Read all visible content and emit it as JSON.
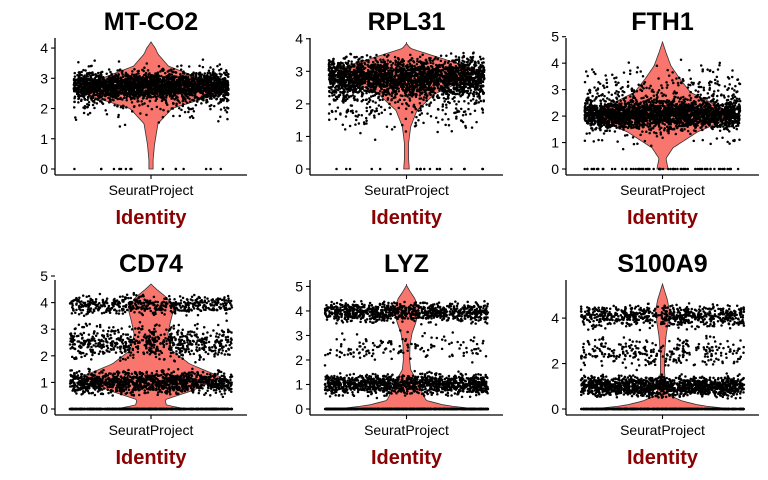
{
  "colors": {
    "violin_fill": "#f8766d",
    "point": "#000000",
    "axis_title": "#8b0000",
    "axis": "#000000"
  },
  "chart_data": [
    {
      "type": "violin",
      "title": "MT-CO2",
      "xlabel": "Identity",
      "categories": [
        "SeuratProject"
      ],
      "ylim": [
        0,
        4.2
      ],
      "yticks": [
        0,
        1,
        2,
        3,
        4
      ],
      "points": {
        "bands": [
          [
            2.15,
            3.35,
            0.8
          ],
          [
            1.3,
            3.9,
            0.2
          ]
        ],
        "zeros": 0.006,
        "count": 2600,
        "jitter": 0.42
      },
      "density": [
        [
          0,
          0.03
        ],
        [
          0.3,
          0.03
        ],
        [
          0.8,
          0.05
        ],
        [
          1.5,
          0.1
        ],
        [
          2.0,
          0.3
        ],
        [
          2.4,
          0.85
        ],
        [
          2.7,
          1.0
        ],
        [
          3.0,
          0.7
        ],
        [
          3.4,
          0.25
        ],
        [
          3.8,
          0.1
        ],
        [
          4.0,
          0.06
        ],
        [
          4.2,
          0.0
        ]
      ]
    },
    {
      "type": "violin",
      "title": "RPL31",
      "xlabel": "Identity",
      "categories": [
        "SeuratProject"
      ],
      "ylim": [
        0,
        3.9
      ],
      "yticks": [
        0,
        1,
        2,
        3,
        4
      ],
      "points": {
        "bands": [
          [
            2.0,
            3.65,
            0.8
          ],
          [
            0.8,
            3.6,
            0.17
          ]
        ],
        "zeros": 0.012,
        "count": 2600,
        "jitter": 0.42
      },
      "density": [
        [
          0,
          0.04
        ],
        [
          0.3,
          0.03
        ],
        [
          0.8,
          0.03
        ],
        [
          1.3,
          0.06
        ],
        [
          1.8,
          0.15
        ],
        [
          2.3,
          0.4
        ],
        [
          2.7,
          0.8
        ],
        [
          3.05,
          1.0
        ],
        [
          3.4,
          0.5
        ],
        [
          3.7,
          0.06
        ],
        [
          3.85,
          0.0
        ]
      ]
    },
    {
      "type": "violin",
      "title": "FTH1",
      "xlabel": "Identity",
      "categories": [
        "SeuratProject"
      ],
      "ylim": [
        0,
        4.8
      ],
      "yticks": [
        0,
        1,
        2,
        3,
        4,
        5
      ],
      "points": {
        "bands": [
          [
            1.3,
            2.8,
            0.72
          ],
          [
            0.4,
            4.3,
            0.24
          ]
        ],
        "zeros": 0.025,
        "count": 2600,
        "jitter": 0.42
      },
      "density": [
        [
          0,
          0.08
        ],
        [
          0.4,
          0.05
        ],
        [
          0.8,
          0.15
        ],
        [
          1.4,
          0.5
        ],
        [
          1.8,
          0.85
        ],
        [
          2.1,
          1.0
        ],
        [
          2.5,
          0.7
        ],
        [
          2.9,
          0.4
        ],
        [
          3.4,
          0.25
        ],
        [
          3.9,
          0.12
        ],
        [
          4.4,
          0.05
        ],
        [
          4.8,
          0.0
        ]
      ]
    },
    {
      "type": "violin",
      "title": "CD74",
      "xlabel": "Identity",
      "categories": [
        "SeuratProject"
      ],
      "ylim": [
        0,
        4.7
      ],
      "yticks": [
        0,
        1,
        2,
        3,
        4,
        5
      ],
      "points": {
        "bands": [
          [
            0.4,
            1.6,
            0.42
          ],
          [
            3.4,
            4.4,
            0.18
          ],
          [
            1.6,
            3.4,
            0.2
          ]
        ],
        "zeros": 0.2,
        "count": 2900,
        "jitter": 0.44
      },
      "density": [
        [
          0,
          0.5
        ],
        [
          0.15,
          0.22
        ],
        [
          0.35,
          0.2
        ],
        [
          0.7,
          0.6
        ],
        [
          1.2,
          1.0
        ],
        [
          1.7,
          0.55
        ],
        [
          2.2,
          0.3
        ],
        [
          2.8,
          0.24
        ],
        [
          3.3,
          0.28
        ],
        [
          3.8,
          0.33
        ],
        [
          4.2,
          0.22
        ],
        [
          4.5,
          0.08
        ],
        [
          4.7,
          0.0
        ]
      ]
    },
    {
      "type": "violin",
      "title": "LYZ",
      "xlabel": "Identity",
      "categories": [
        "SeuratProject"
      ],
      "ylim": [
        0,
        5.1
      ],
      "yticks": [
        0,
        1,
        2,
        3,
        4,
        5
      ],
      "points": {
        "bands": [
          [
            0.4,
            1.6,
            0.4
          ],
          [
            3.4,
            4.5,
            0.3
          ],
          [
            1.6,
            3.4,
            0.05
          ]
        ],
        "zeros": 0.25,
        "count": 2900,
        "jitter": 0.44
      },
      "density": [
        [
          0,
          1.0
        ],
        [
          0.15,
          0.55
        ],
        [
          0.35,
          0.28
        ],
        [
          0.7,
          0.22
        ],
        [
          1.0,
          0.18
        ],
        [
          1.6,
          0.06
        ],
        [
          2.0,
          0.045
        ],
        [
          2.6,
          0.05
        ],
        [
          3.1,
          0.08
        ],
        [
          3.5,
          0.13
        ],
        [
          4.0,
          0.18
        ],
        [
          4.5,
          0.12
        ],
        [
          4.8,
          0.05
        ],
        [
          5.05,
          0.0
        ]
      ]
    },
    {
      "type": "violin",
      "title": "S100A9",
      "xlabel": "Identity",
      "categories": [
        "SeuratProject"
      ],
      "ylim": [
        0,
        5.5
      ],
      "yticks": [
        0,
        2,
        4
      ],
      "points": {
        "bands": [
          [
            0.4,
            1.6,
            0.45
          ],
          [
            3.4,
            4.8,
            0.22
          ],
          [
            1.6,
            3.4,
            0.1
          ]
        ],
        "zeros": 0.2,
        "count": 2900,
        "jitter": 0.44
      },
      "density": [
        [
          0,
          1.0
        ],
        [
          0.15,
          0.55
        ],
        [
          0.35,
          0.28
        ],
        [
          0.6,
          0.1
        ],
        [
          1.0,
          0.05
        ],
        [
          1.6,
          0.03
        ],
        [
          2.4,
          0.03
        ],
        [
          3.2,
          0.05
        ],
        [
          3.8,
          0.08
        ],
        [
          4.3,
          0.1
        ],
        [
          4.8,
          0.07
        ],
        [
          5.2,
          0.03
        ],
        [
          5.5,
          0.0
        ]
      ]
    }
  ]
}
